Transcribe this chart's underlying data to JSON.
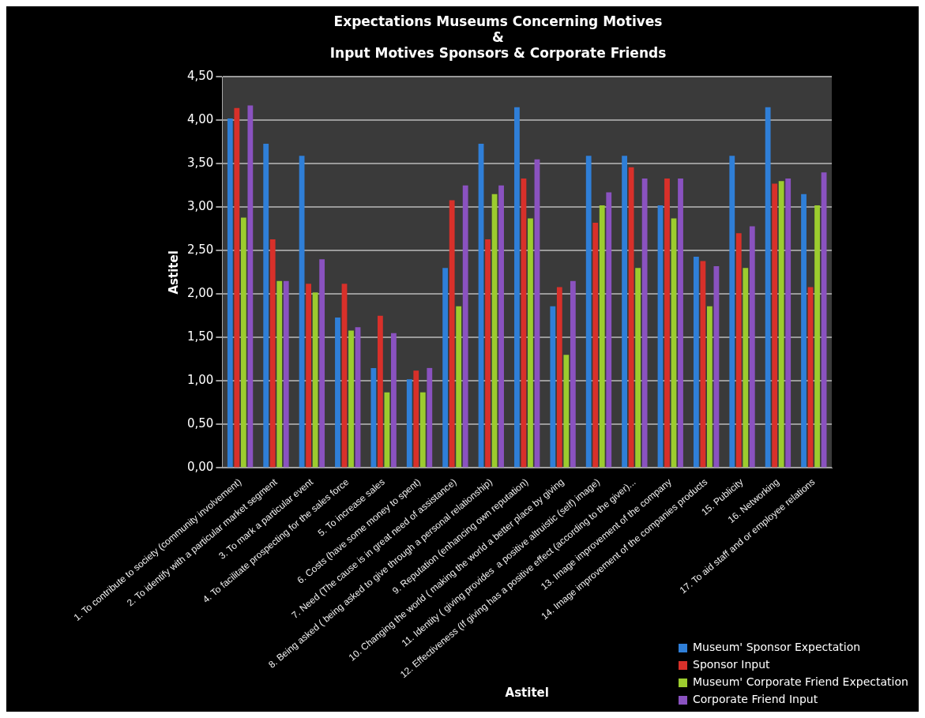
{
  "chart_data": {
    "type": "bar",
    "title": "Expectations Museums Concerning Motives\n&\nInput Motives Sponsors & Corporate Friends",
    "xlabel": "Astitel",
    "ylabel": "Astitel",
    "categories": [
      "1. To contribute to society (community involvement)",
      "2. To identify with a particular market segment",
      "3. To mark a particular event",
      "4. To facilitate prospecting for the sales force",
      "5. To increase sales",
      "6. Costs (have some money to spent)",
      "7. Need (The cause is in great need of assistance)",
      "8. Being asked ( being asked to give through a personal relationship)",
      "9. Reputation (enhancing own reputation)",
      "10. Changing the world ( making the world a better place by giving",
      "11. Identity ( giving provides  a positive altruistic (self) image)",
      "12. Effectiveness (If giving has a positive effect (according to the giver)...",
      "13. Image improvement of the company",
      "14. Image improvement of the companies products",
      "15. Publicity",
      "16. Networking",
      "17. To aid staff and or employee relations"
    ],
    "series": [
      {
        "name": "Museum' Sponsor Expectation",
        "color": "#2f7fd8",
        "values": [
          4.02,
          3.73,
          3.59,
          1.73,
          1.15,
          1.02,
          2.3,
          3.73,
          4.15,
          1.86,
          3.59,
          3.59,
          3.02,
          2.43,
          3.59,
          4.15,
          3.15
        ]
      },
      {
        "name": "Sponsor Input",
        "color": "#d8302a",
        "values": [
          4.14,
          2.63,
          2.12,
          2.12,
          1.75,
          1.12,
          3.08,
          2.63,
          3.33,
          2.08,
          2.82,
          3.46,
          3.33,
          2.38,
          2.7,
          3.27,
          2.08
        ]
      },
      {
        "name": "Museum' Corporate Friend Expectation",
        "color": "#9ccc2e",
        "values": [
          2.88,
          2.15,
          2.02,
          1.58,
          0.87,
          0.87,
          1.86,
          3.15,
          2.87,
          1.3,
          3.02,
          2.3,
          2.87,
          1.86,
          2.3,
          3.3,
          3.02
        ]
      },
      {
        "name": "Corporate Friend Input",
        "color": "#8a52c0",
        "values": [
          4.17,
          2.15,
          2.4,
          1.62,
          1.55,
          1.15,
          3.25,
          3.25,
          3.55,
          2.15,
          3.17,
          3.33,
          3.33,
          2.32,
          2.78,
          3.33,
          3.4
        ]
      }
    ],
    "ylim": [
      0,
      4.5
    ],
    "yticks": [
      {
        "value": 0,
        "label": "0,00"
      },
      {
        "value": 0.5,
        "label": "0,50"
      },
      {
        "value": 1,
        "label": "1,00"
      },
      {
        "value": 1.5,
        "label": "1,50"
      },
      {
        "value": 2,
        "label": "2,00"
      },
      {
        "value": 2.5,
        "label": "2,50"
      },
      {
        "value": 3,
        "label": "3,00"
      },
      {
        "value": 3.5,
        "label": "3,50"
      },
      {
        "value": 4,
        "label": "4,00"
      },
      {
        "value": 4.5,
        "label": "4,50"
      }
    ],
    "grid": "y",
    "legend": "bottom right"
  }
}
